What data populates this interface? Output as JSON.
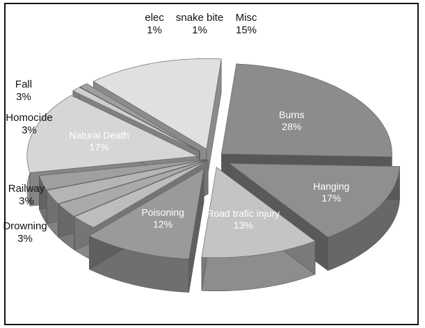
{
  "chart_data": {
    "type": "pie",
    "title": "",
    "slices": [
      {
        "label": "Burns",
        "percent_label": "28%",
        "value": 28
      },
      {
        "label": "Hanging",
        "percent_label": "17%",
        "value": 17
      },
      {
        "label": "Road trafic injury",
        "percent_label": "13%",
        "value": 13
      },
      {
        "label": "Poisoning",
        "percent_label": "12%",
        "value": 12
      },
      {
        "label": "Drowning",
        "percent_label": "3%",
        "value": 3
      },
      {
        "label": "Railway",
        "percent_label": "3%",
        "value": 3
      },
      {
        "label": "Homocide",
        "percent_label": "3%",
        "value": 3
      },
      {
        "label": "Fall",
        "percent_label": "3%",
        "value": 3
      },
      {
        "label": "Natural Death",
        "percent_label": "17%",
        "value": 17
      },
      {
        "label": "elec",
        "percent_label": "1%",
        "value": 1
      },
      {
        "label": "snake bite",
        "percent_label": "1%",
        "value": 1
      },
      {
        "label": "Misc",
        "percent_label": "15%",
        "value": 15
      }
    ],
    "colors": [
      "#8c8c8c",
      "#8f8f8f",
      "#c4c4c4",
      "#9a9a9a",
      "#bdbdbd",
      "#aaaaaa",
      "#b5b5b5",
      "#a0a0a0",
      "#d6d6d6",
      "#cfcfcf",
      "#9f9f9f",
      "#e0e0e0"
    ],
    "style": "3d-exploded-grayscale"
  }
}
